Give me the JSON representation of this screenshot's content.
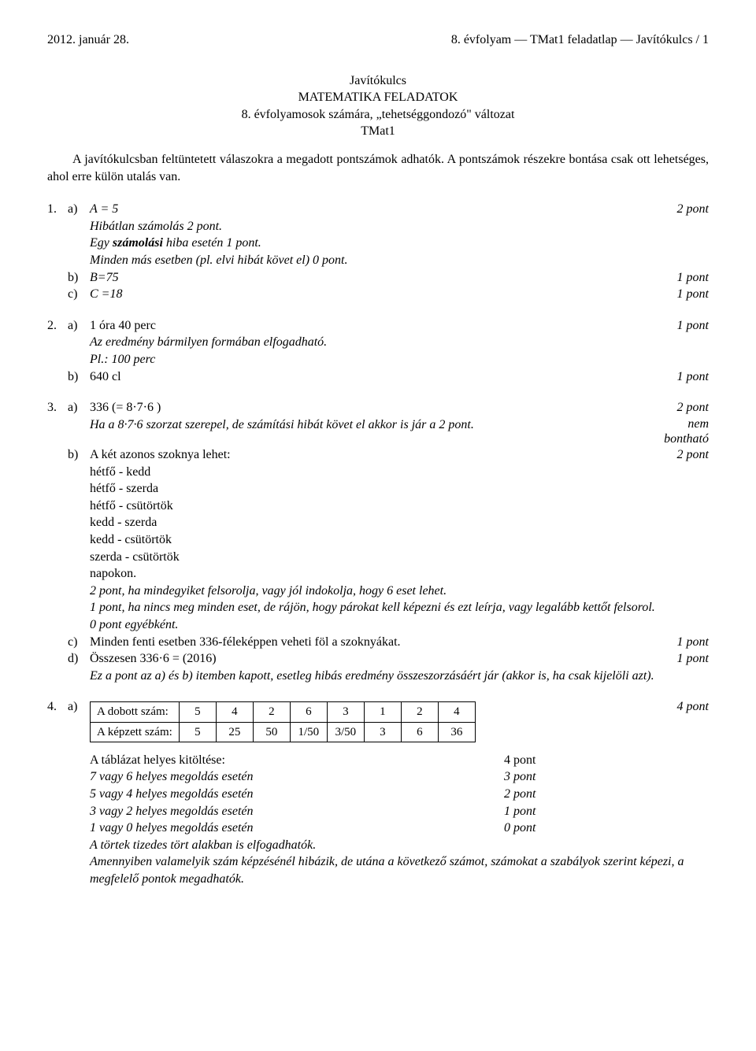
{
  "header": {
    "date": "2012. január 28.",
    "right": "8. évfolyam — TMat1 feladatlap — Javítókulcs / 1"
  },
  "title": {
    "line1": "Javítókulcs",
    "line2": "MATEMATIKA FELADATOK",
    "line3": "8. évfolyamosok számára, „tehetséggondozó\" változat",
    "line4": "TMat1"
  },
  "intro": "A javítókulcsban feltüntetett válaszokra a megadott pontszámok adhatók. A pontszámok részekre bontása csak ott lehetséges, ahol erre külön utalás van.",
  "q1": {
    "num": "1.",
    "a_lab": "a)",
    "a_text": "A = 5",
    "a_pts": "2 pont",
    "a_note1": "Hibátlan számolás 2 pont.",
    "a_note2_pre": "Egy ",
    "a_note2_bold": "számolási",
    "a_note2_post": " hiba esetén 1 pont.",
    "a_note3": "Minden más esetben (pl. elvi hibát követ el) 0 pont.",
    "b_lab": "b)",
    "b_text": "B=75",
    "b_pts": "1 pont",
    "c_lab": "c)",
    "c_text": "C =18",
    "c_pts": "1 pont"
  },
  "q2": {
    "num": "2.",
    "a_lab": "a)",
    "a_text": "1 óra 40 perc",
    "a_pts": "1 pont",
    "a_note1": "Az eredmény bármilyen formában elfogadható.",
    "a_note2": "Pl.: 100 perc",
    "b_lab": "b)",
    "b_text": "640 cl",
    "b_pts": "1 pont"
  },
  "q3": {
    "num": "3.",
    "a_lab": "a)",
    "a_text": "336 (= 8·7·6 )",
    "a_pts": "2 pont",
    "a_note": "Ha a 8·7·6 szorzat szerepel, de számítási hibát követ el akkor is jár a 2 pont.",
    "nem1": "nem",
    "nem2": "bontható",
    "b_lab": "b)",
    "b_text": "A két azonos szoknya lehet:",
    "b_pts": "2 pont",
    "b_l1": "hétfő - kedd",
    "b_l2": "hétfő - szerda",
    "b_l3": "hétfő - csütörtök",
    "b_l4": "kedd - szerda",
    "b_l5": "kedd - csütörtök",
    "b_l6": "szerda - csütörtök",
    "b_l7": "napokon.",
    "b_r1": "2 pont, ha mindegyiket felsorolja, vagy jól indokolja, hogy 6 eset lehet.",
    "b_r2": "1 pont, ha nincs meg minden eset, de rájön, hogy párokat kell képezni és ezt leírja, vagy legalább kettőt felsorol.",
    "b_r3": "0 pont egyébként.",
    "c_lab": "c)",
    "c_text": "Minden fenti esetben 336-féleképpen veheti föl a szoknyákat.",
    "c_pts": "1 pont",
    "d_lab": "d)",
    "d_text": "Összesen 336·6 = (2016)",
    "d_pts": "1 pont",
    "d_note": "Ez a pont az a) és b) itemben kapott, esetleg hibás eredmény összeszorzásáért jár (akkor is, ha csak kijelöli azt)."
  },
  "q4": {
    "num": "4.",
    "a_lab": "a)",
    "a_pts": "4 pont",
    "row1_label": "A dobott szám:",
    "row1": [
      "5",
      "4",
      "2",
      "6",
      "3",
      "1",
      "2",
      "4"
    ],
    "row2_label": "A képzett szám:",
    "row2": [
      "5",
      "25",
      "50",
      "1/50",
      "3/50",
      "3",
      "6",
      "36"
    ],
    "sc_title": "A táblázat helyes kitöltése:",
    "sc_title_pts": "4 pont",
    "sc1": "7 vagy 6 helyes megoldás esetén",
    "sc1p": "3 pont",
    "sc2": "5 vagy 4 helyes megoldás esetén",
    "sc2p": "2 pont",
    "sc3": "3 vagy 2 helyes megoldás esetén",
    "sc3p": "1 pont",
    "sc4": "1 vagy 0 helyes megoldás esetén",
    "sc4p": "0 pont",
    "note1": "A törtek tizedes tört alakban is elfogadhatók.",
    "note2": "Amennyiben valamelyik szám képzésénél hibázik, de utána a következő számot, számokat a szabályok szerint képezi, a megfelelő pontok megadhatók."
  }
}
